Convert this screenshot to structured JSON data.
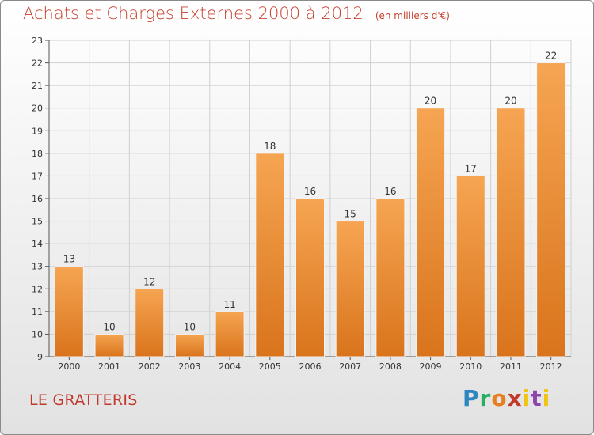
{
  "title": "Achats et Charges Externes 2000 à 2012",
  "unit": "(en milliers d'€)",
  "commune": "LE GRATTERIS",
  "logo": [
    "P",
    "r",
    "o",
    "x",
    "i",
    "t",
    "i"
  ],
  "colors": {
    "bar": "#e8872e",
    "bar_light": "#f6a552",
    "title": "#c6422f"
  },
  "chart_data": {
    "type": "bar",
    "categories": [
      "2000",
      "2001",
      "2002",
      "2003",
      "2004",
      "2005",
      "2006",
      "2007",
      "2008",
      "2009",
      "2010",
      "2011",
      "2012"
    ],
    "values": [
      13,
      10,
      12,
      10,
      11,
      18,
      16,
      15,
      16,
      20,
      17,
      20,
      22
    ],
    "ylim": [
      9,
      23
    ],
    "yticks": [
      9,
      10,
      11,
      12,
      13,
      14,
      15,
      16,
      17,
      18,
      19,
      20,
      21,
      22,
      23
    ],
    "grid": true
  }
}
